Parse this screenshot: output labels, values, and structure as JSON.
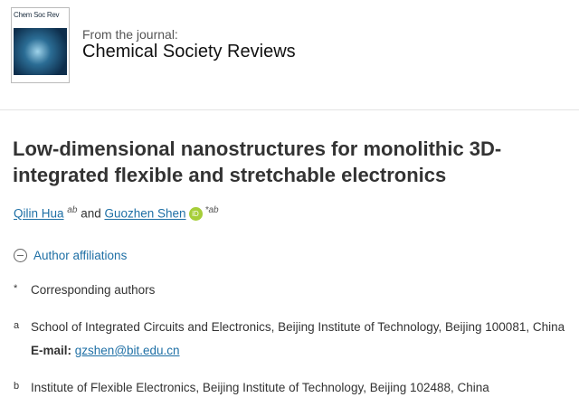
{
  "journal": {
    "cover_title": "Chem Soc Rev",
    "from_label": "From the journal:",
    "name": "Chemical Society Reviews"
  },
  "article": {
    "title": "Low-dimensional nanostructures for monolithic 3D-integrated flexible and stretchable electronics"
  },
  "authors": [
    {
      "name": "Qilin Hua",
      "sup": "ab"
    },
    {
      "name": "Guozhen Shen",
      "sup": "*ab",
      "orcid": "iD"
    }
  ],
  "and": "and",
  "affiliations_toggle": "Author affiliations",
  "affiliations": [
    {
      "mark": "*",
      "text": "Corresponding authors"
    },
    {
      "mark": "a",
      "text": "School of Integrated Circuits and Electronics, Beijing Institute of Technology, Beijing 100081, China",
      "email_label": "E-mail:",
      "email": "gzshen@bit.edu.cn"
    },
    {
      "mark": "b",
      "text": "Institute of Flexible Electronics, Beijing Institute of Technology, Beijing 102488, China"
    }
  ]
}
